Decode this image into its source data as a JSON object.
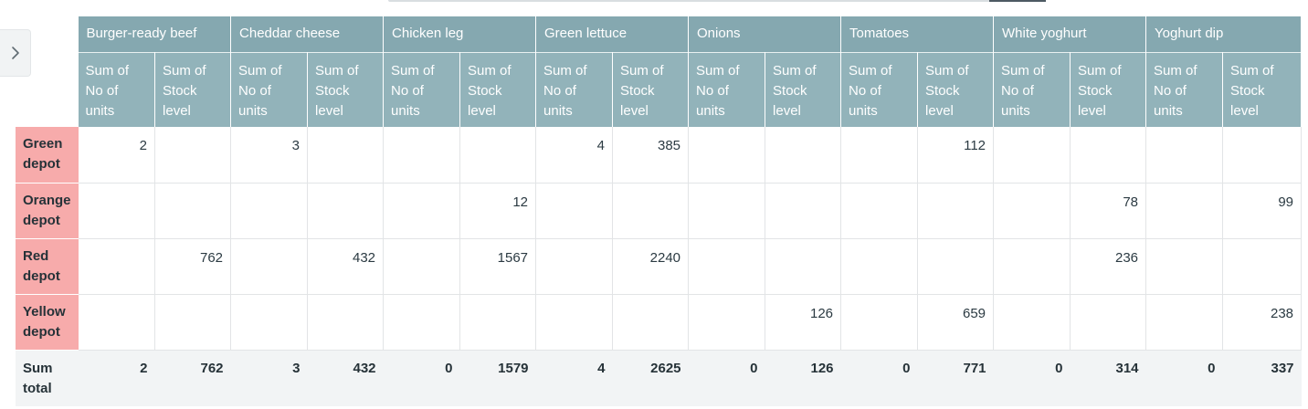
{
  "sidebar_toggle": {
    "icon": "chevron-right-icon"
  },
  "products": [
    "Burger-ready beef",
    "Cheddar cheese",
    "Chicken leg",
    "Green lettuce",
    "Onions",
    "Tomatoes",
    "White yoghurt",
    "Yoghurt dip"
  ],
  "measures": [
    "Sum of No of units",
    "Sum of Stock level"
  ],
  "rows": [
    {
      "label": "Green depot",
      "values": [
        "2",
        "",
        "3",
        "",
        "",
        "",
        "4",
        "385",
        "",
        "",
        "",
        "112",
        "",
        "",
        "",
        ""
      ]
    },
    {
      "label": "Orange depot",
      "values": [
        "",
        "",
        "",
        "",
        "",
        "12",
        "",
        "",
        "",
        "",
        "",
        "",
        "",
        "78",
        "",
        "99"
      ]
    },
    {
      "label": "Red depot",
      "values": [
        "",
        "762",
        "",
        "432",
        "",
        "1567",
        "",
        "2240",
        "",
        "",
        "",
        "",
        "",
        "236",
        "",
        ""
      ]
    },
    {
      "label": "Yellow depot",
      "values": [
        "",
        "",
        "",
        "",
        "",
        "",
        "",
        "",
        "",
        "126",
        "",
        "659",
        "",
        "",
        "",
        "238"
      ]
    }
  ],
  "totals": {
    "label": "Sum total",
    "values": [
      "2",
      "762",
      "3",
      "432",
      "0",
      "1579",
      "4",
      "2625",
      "0",
      "126",
      "0",
      "771",
      "0",
      "314",
      "0",
      "337"
    ]
  },
  "colors": {
    "product_header": "#85a8b0",
    "measure_header": "#92b3ba",
    "row_label": "#f7abab",
    "total_row": "#f2f4f5"
  }
}
